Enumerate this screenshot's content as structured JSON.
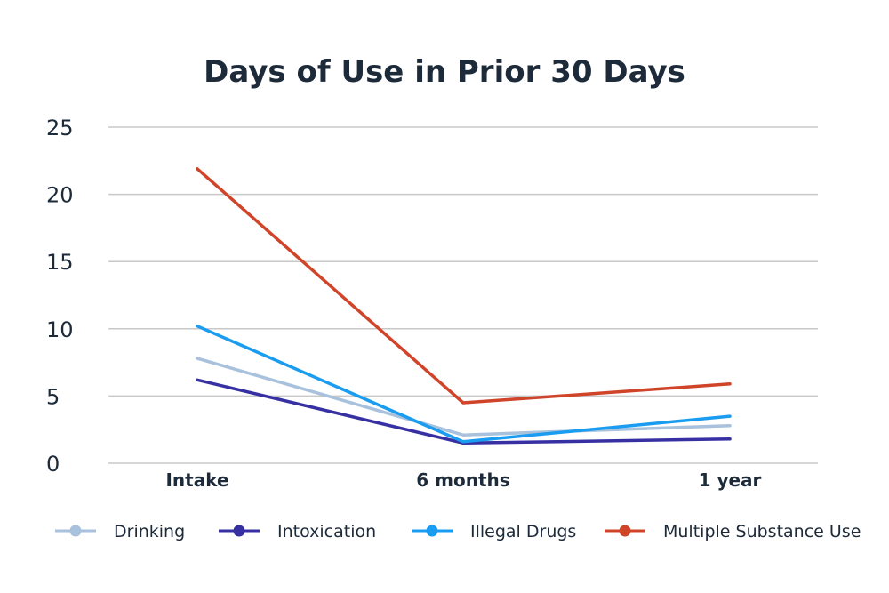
{
  "chart_data": {
    "type": "line",
    "title": "Days of Use in Prior 30 Days",
    "xlabel": "",
    "ylabel": "",
    "categories": [
      "Intake",
      "6 months",
      "1 year"
    ],
    "ylim": [
      0,
      25
    ],
    "yticks": [
      0,
      5,
      10,
      15,
      20,
      25
    ],
    "grid": true,
    "legend_position": "bottom",
    "series": [
      {
        "name": "Drinking",
        "color": "#a8c1dc",
        "values": [
          7.8,
          2.1,
          2.8
        ]
      },
      {
        "name": "Intoxication",
        "color": "#3730a3",
        "values": [
          6.2,
          1.5,
          1.8
        ]
      },
      {
        "name": "Illegal Drugs",
        "color": "#1a9cf0",
        "values": [
          10.2,
          1.6,
          3.5
        ]
      },
      {
        "name": "Multiple Substance Use",
        "color": "#d0442a",
        "values": [
          21.9,
          4.5,
          5.9
        ]
      }
    ]
  }
}
